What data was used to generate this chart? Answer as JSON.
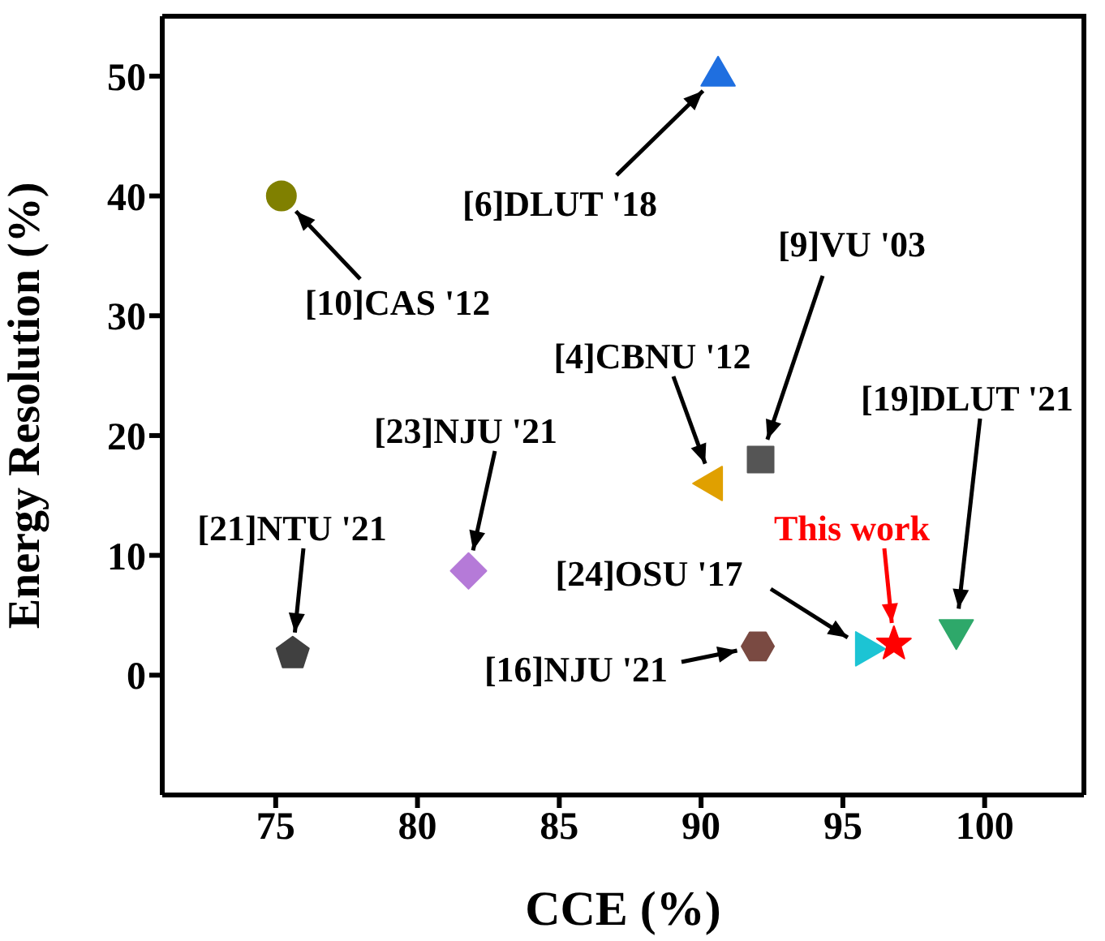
{
  "chart_data": {
    "type": "scatter",
    "xlabel": "CCE (%)",
    "ylabel": "Energy Resolution (%)",
    "xlim": [
      71,
      103.5
    ],
    "ylim": [
      -10,
      55
    ],
    "xticks": [
      75,
      80,
      85,
      90,
      95,
      100
    ],
    "yticks": [
      0,
      10,
      20,
      30,
      40,
      50
    ],
    "series": [
      {
        "name": "[10]CAS '12",
        "color": "#808000",
        "marker": "circle",
        "x": [
          75.2
        ],
        "values": [
          40
        ]
      },
      {
        "name": "[6]DLUT '18",
        "color": "#1f6fe0",
        "marker": "triangle",
        "x": [
          90.6
        ],
        "values": [
          50
        ]
      },
      {
        "name": "[9]VU '03",
        "color": "#555555",
        "marker": "square",
        "x": [
          92.1
        ],
        "values": [
          18
        ]
      },
      {
        "name": "[4]CBNU '12",
        "color": "#e0a000",
        "marker": "triangle-left",
        "x": [
          90.4
        ],
        "values": [
          16
        ]
      },
      {
        "name": "[23]NJU '21",
        "color": "#b57ad8",
        "marker": "diamond",
        "x": [
          81.8
        ],
        "values": [
          8.7
        ]
      },
      {
        "name": "[21]NTU '21",
        "color": "#404040",
        "x": [
          75.6
        ],
        "values": [
          1.8
        ]
      },
      {
        "name": "[24]OSU '17",
        "color": "#1cc4d4",
        "marker": "triangle-right",
        "x": [
          95.8
        ],
        "values": [
          2.2
        ]
      },
      {
        "name": "[16]NJU '21",
        "color": "#7a4a42",
        "x": [
          92
        ],
        "values": [
          2.4
        ]
      },
      {
        "name": "This work",
        "color": "#ff0000",
        "marker": "star",
        "x": [
          96.8
        ],
        "values": [
          2.6
        ]
      },
      {
        "name": "[19]DLUT '21",
        "color": "#2ea86a",
        "marker": "triangle-down",
        "x": [
          99
        ],
        "values": [
          3.8
        ]
      }
    ]
  }
}
